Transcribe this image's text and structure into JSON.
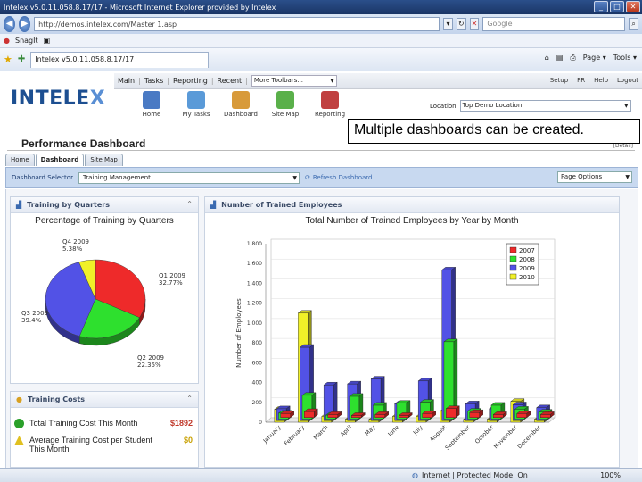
{
  "window": {
    "title": "Intelex v5.0.11.058.8.17/17 - Microsoft Internet Explorer provided by Intelex"
  },
  "address": {
    "url": "http://demos.intelex.com/Master 1.asp",
    "search_placeholder": "Google"
  },
  "linkbar": {
    "items": [
      "SnagIt"
    ]
  },
  "favbar": {
    "tab_label": "Intelex v5.0.11.058.8.17/17",
    "tools": [
      "Page ▾",
      "Tools ▾"
    ]
  },
  "app": {
    "logo_a": "INTELE",
    "logo_b": "X",
    "menu": [
      "Main",
      "Tasks",
      "Reporting",
      "Recent"
    ],
    "more_toolbars": "More Toolbars...",
    "header_links": [
      "Setup",
      "FR",
      "Help",
      "Logout"
    ],
    "icons": [
      {
        "label": "Home",
        "color": "#4a7ac4"
      },
      {
        "label": "My Tasks",
        "color": "#5a9ad8"
      },
      {
        "label": "Dashboard",
        "color": "#d89a3a"
      },
      {
        "label": "Site Map",
        "color": "#5ab04a"
      },
      {
        "label": "Reporting",
        "color": "#c04040"
      }
    ],
    "location_label": "Location",
    "location_value": "Top Demo Location"
  },
  "callout": "Multiple dashboards can be created.",
  "page": {
    "title": "Performance Dashboard",
    "detail": "[Detail]",
    "tabs": [
      "Home",
      "Dashboard",
      "Site Map"
    ],
    "active_tab": "Dashboard",
    "dash_selector_label": "Dashboard Selector",
    "dash_selector_value": "Training Management",
    "refresh_label": "Refresh Dashboard",
    "page_options": "Page Options"
  },
  "panels": {
    "quarters": {
      "header": "Training by Quarters",
      "title": "Percentage of Training by Quarters"
    },
    "trained": {
      "header": "Number of Trained Employees",
      "title": "Total Number of Trained Employees by Year by Month"
    },
    "costs": {
      "header": "Training Costs",
      "rows": [
        {
          "label": "Total Training Cost This Month",
          "value": "$1892",
          "status": "ok"
        },
        {
          "label": "Average Training Cost per Student This Month",
          "value": "$0",
          "status": "warn"
        }
      ]
    }
  },
  "chart_data": [
    {
      "type": "pie",
      "title": "Percentage of Training by Quarters",
      "categories": [
        "Q1 2009",
        "Q2 2009",
        "Q3 2009",
        "Q4 2009"
      ],
      "values": [
        32.77,
        22.35,
        39.4,
        5.38
      ],
      "value_labels": [
        "32.77%",
        "22.35%",
        "39.4%",
        "5.38%"
      ],
      "colors": [
        "#ee2a2a",
        "#2ee02e",
        "#5252e6",
        "#f0f028"
      ]
    },
    {
      "type": "bar",
      "title": "Total Number of Trained Employees by Year by Month",
      "ylabel": "Number of Employees",
      "xlabel": "",
      "ylim": [
        0,
        1800
      ],
      "yticks": [
        0,
        200,
        400,
        600,
        800,
        1000,
        1200,
        1400,
        1600,
        1800
      ],
      "categories": [
        "January",
        "February",
        "March",
        "April",
        "May",
        "June",
        "July",
        "August",
        "September",
        "October",
        "November",
        "December"
      ],
      "legend_position": "top-right",
      "series": [
        {
          "name": "2007",
          "color": "#ee2a2a",
          "values": [
            40,
            60,
            30,
            20,
            30,
            20,
            40,
            90,
            50,
            30,
            40,
            30
          ]
        },
        {
          "name": "2008",
          "color": "#2ee02e",
          "values": [
            60,
            240,
            40,
            230,
            140,
            160,
            170,
            780,
            80,
            140,
            100,
            70
          ]
        },
        {
          "name": "2009",
          "color": "#5252e6",
          "values": [
            120,
            740,
            360,
            370,
            420,
            170,
            400,
            1520,
            170,
            120,
            160,
            130
          ]
        },
        {
          "name": "2010",
          "color": "#f0f028",
          "values": [
            130,
            1100,
            60,
            30,
            30,
            60,
            60,
            110,
            30,
            30,
            210,
            30
          ]
        }
      ]
    }
  ],
  "status": {
    "zone": "Internet | Protected Mode: On",
    "zoom": "100%"
  }
}
